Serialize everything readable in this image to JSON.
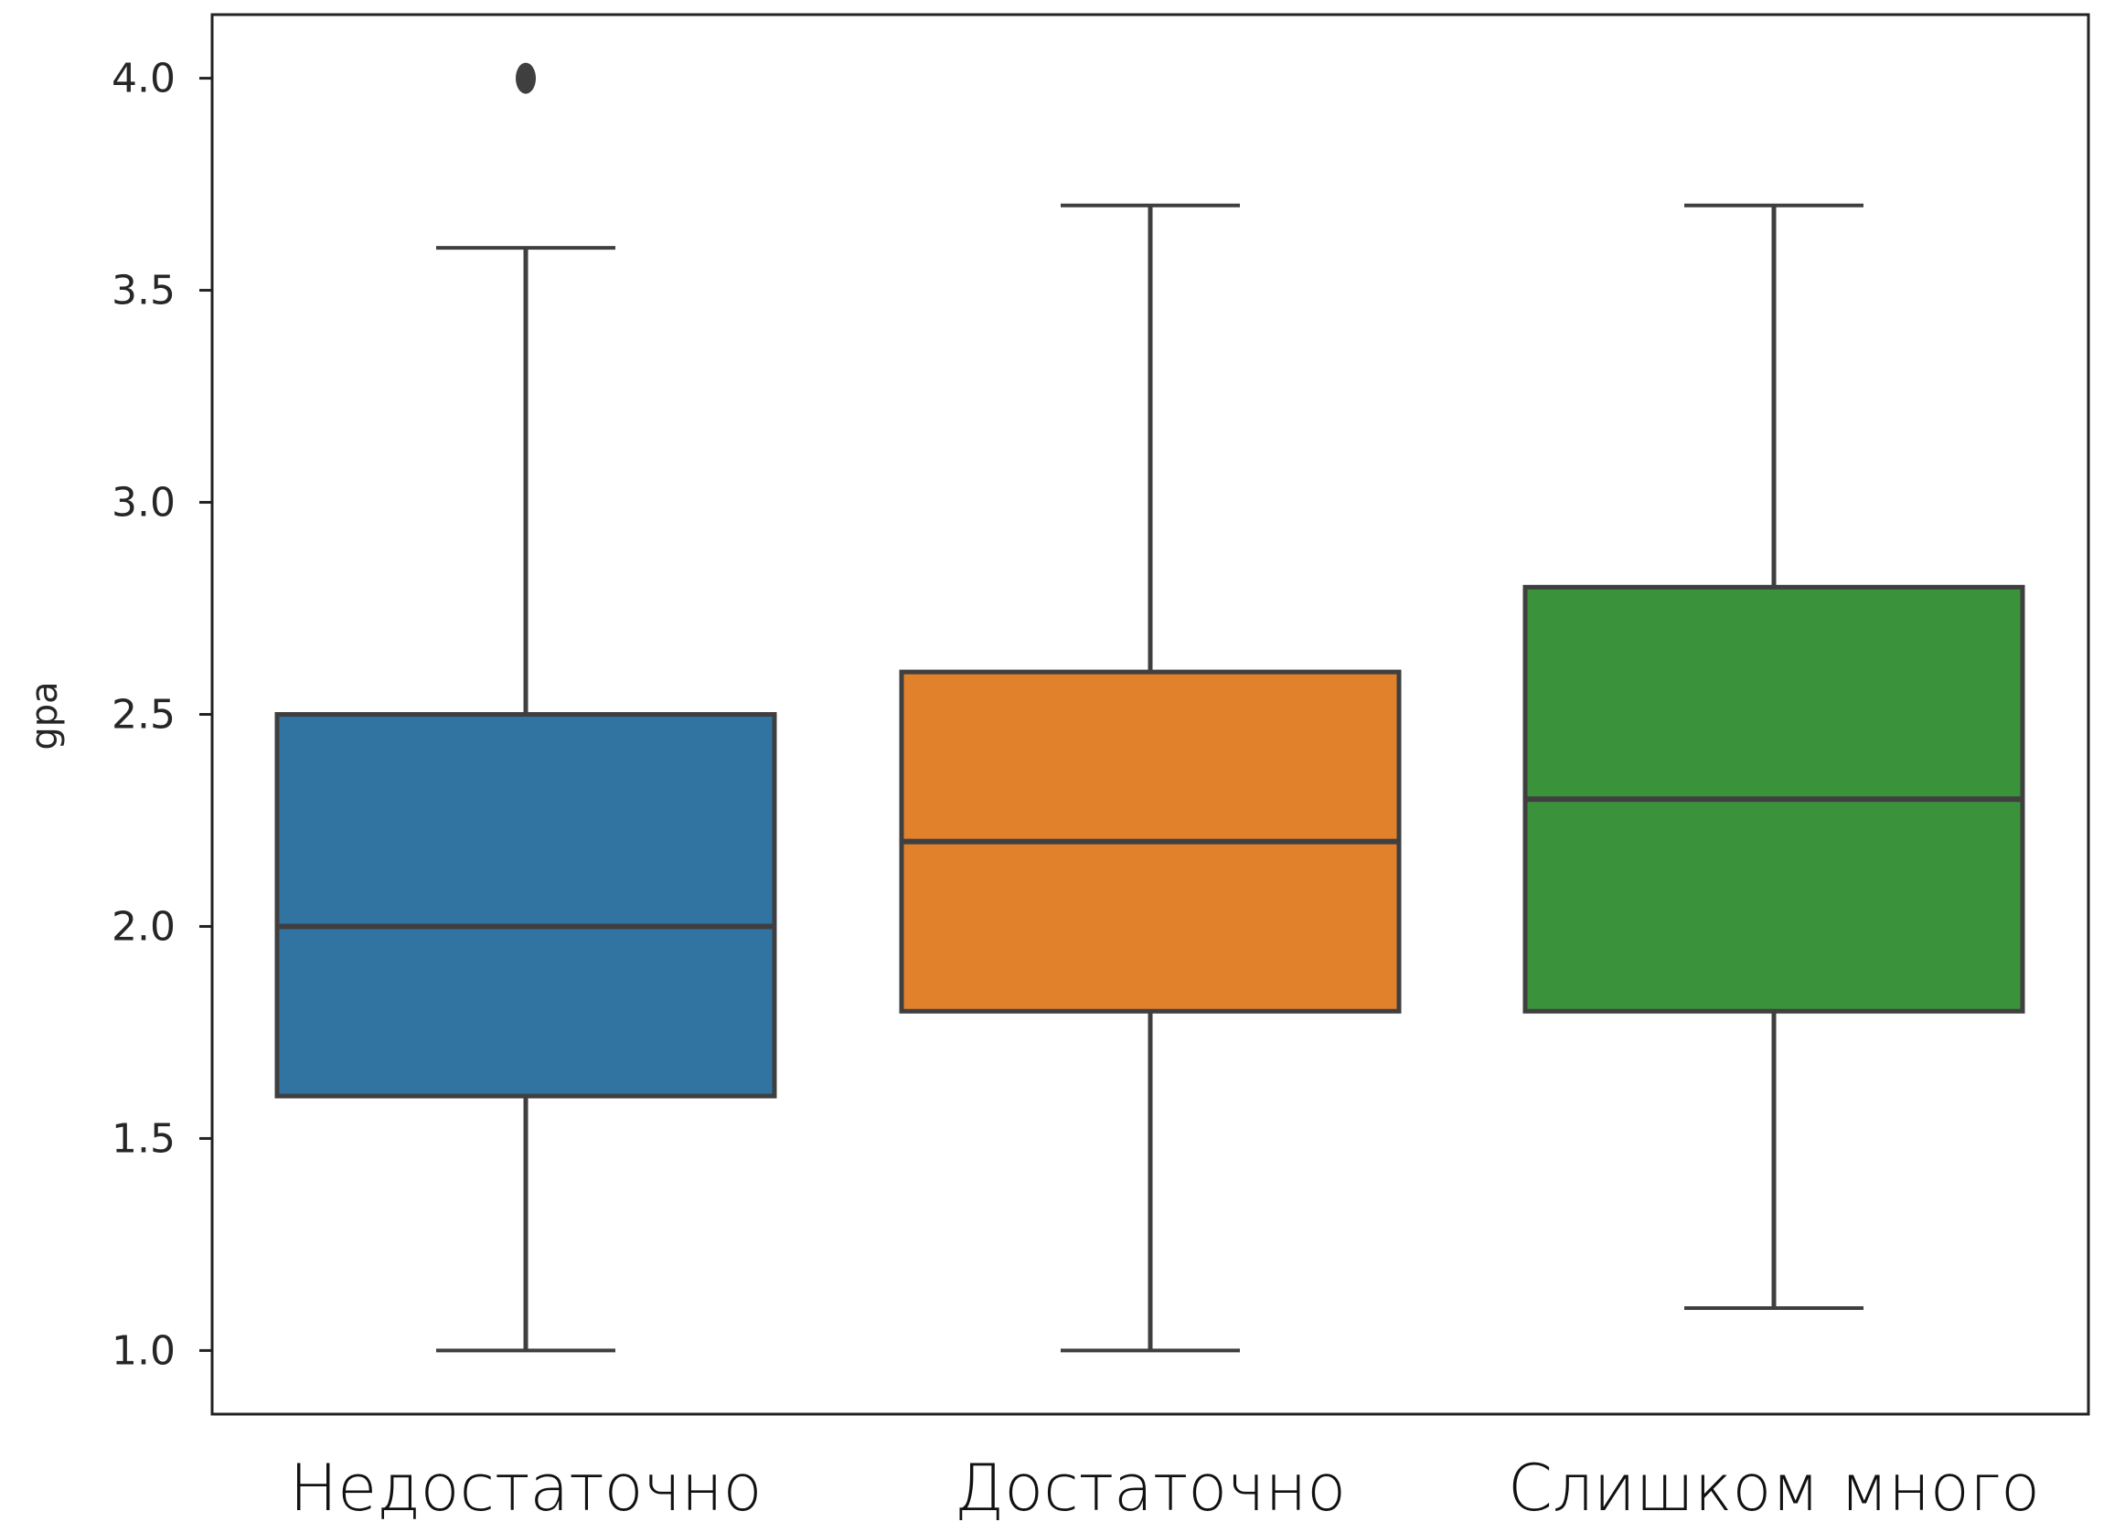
{
  "chart_data": {
    "type": "box",
    "title": "",
    "xlabel": "",
    "ylabel": "gpa",
    "ylim": [
      0.85,
      4.15
    ],
    "yticks": [
      "1.0",
      "1.5",
      "2.0",
      "2.5",
      "3.0",
      "3.5",
      "4.0"
    ],
    "categories": [
      "Недостаточно",
      "Достаточно",
      "Слишком много"
    ],
    "boxes": [
      {
        "category": "Недостаточно",
        "whisker_low": 1.0,
        "q1": 1.6,
        "median": 2.0,
        "q3": 2.5,
        "whisker_high": 3.6,
        "outliers": [
          4.0
        ],
        "color": "#3274a1"
      },
      {
        "category": "Достаточно",
        "whisker_low": 1.0,
        "q1": 1.8,
        "median": 2.2,
        "q3": 2.6,
        "whisker_high": 3.7,
        "outliers": [],
        "color": "#e1812c"
      },
      {
        "category": "Слишком много",
        "whisker_low": 1.1,
        "q1": 1.8,
        "median": 2.3,
        "q3": 2.8,
        "whisker_high": 3.7,
        "outliers": [],
        "color": "#3a923a"
      }
    ],
    "line_color": "#3f3f3f",
    "grid": false,
    "legend": "none"
  }
}
